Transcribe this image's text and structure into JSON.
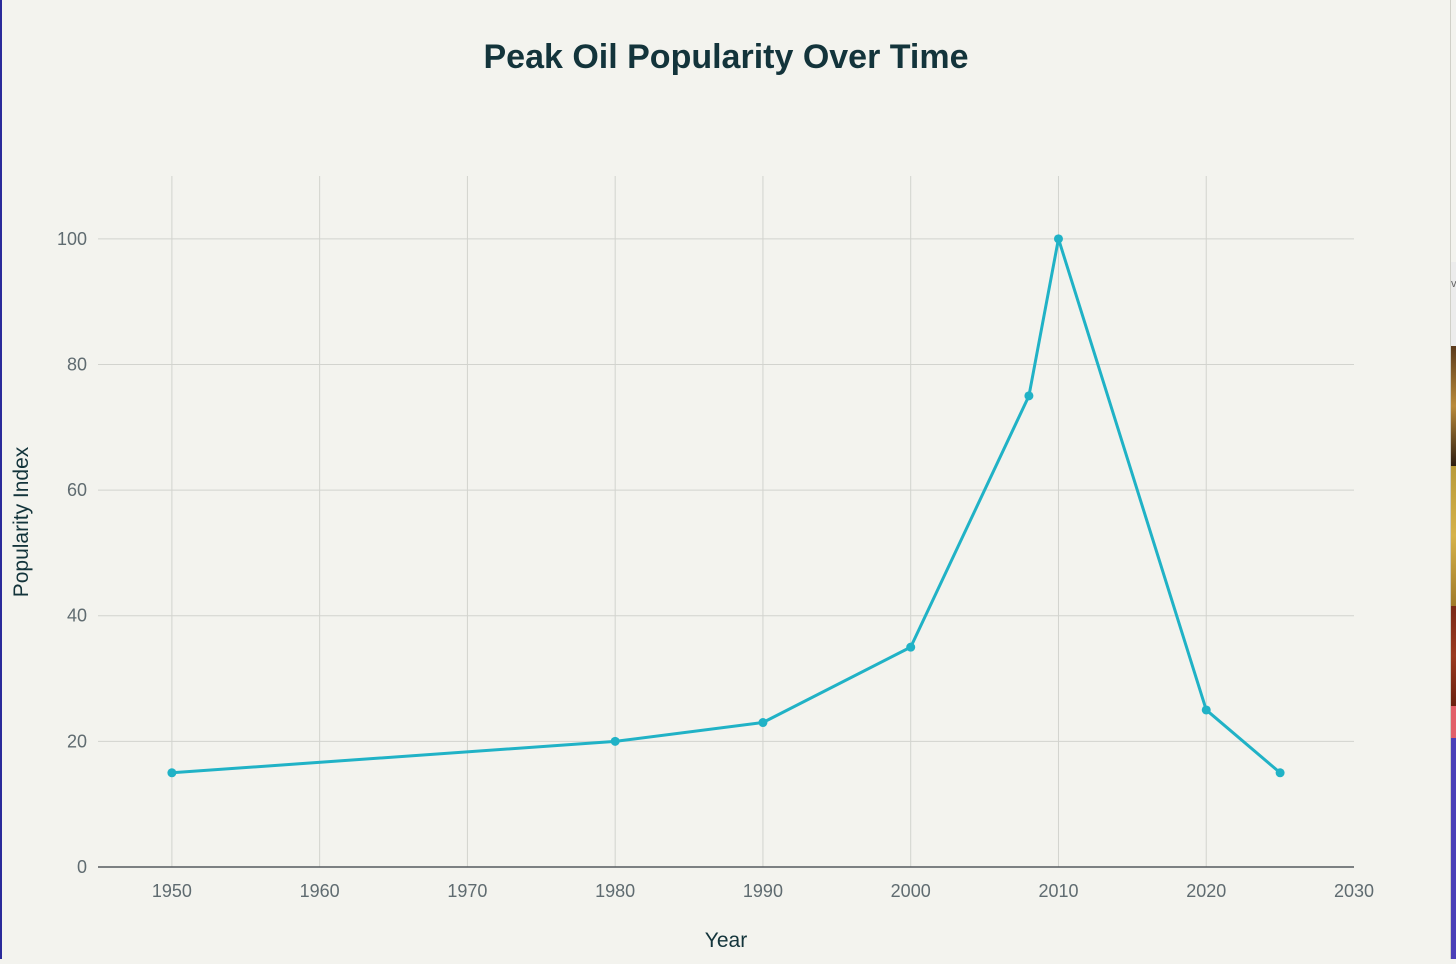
{
  "chart_data": {
    "type": "line",
    "title": "Peak Oil Popularity Over Time",
    "xlabel": "Year",
    "ylabel": "Popularity Index",
    "xlim": [
      1945,
      2030
    ],
    "ylim": [
      0,
      110
    ],
    "x_ticks": [
      1950,
      1960,
      1970,
      1980,
      1990,
      2000,
      2010,
      2020,
      2030
    ],
    "y_ticks": [
      0,
      20,
      40,
      60,
      80,
      100
    ],
    "grid": true,
    "legend": "none",
    "series": [
      {
        "name": "Popularity Index",
        "color": "#20b2c6",
        "x": [
          1950,
          1980,
          1990,
          2000,
          2008,
          2010,
          2020,
          2025
        ],
        "y": [
          15,
          20,
          23,
          35,
          75,
          100,
          25,
          15
        ]
      }
    ]
  },
  "colors": {
    "background": "#f3f3ee",
    "grid": "#d2d3ce",
    "axis": "#555a5f",
    "title": "#13343b",
    "tick_text": "#5f6b70",
    "line": "#20b2c6"
  },
  "sidebar_strip": {
    "letter": "v"
  }
}
